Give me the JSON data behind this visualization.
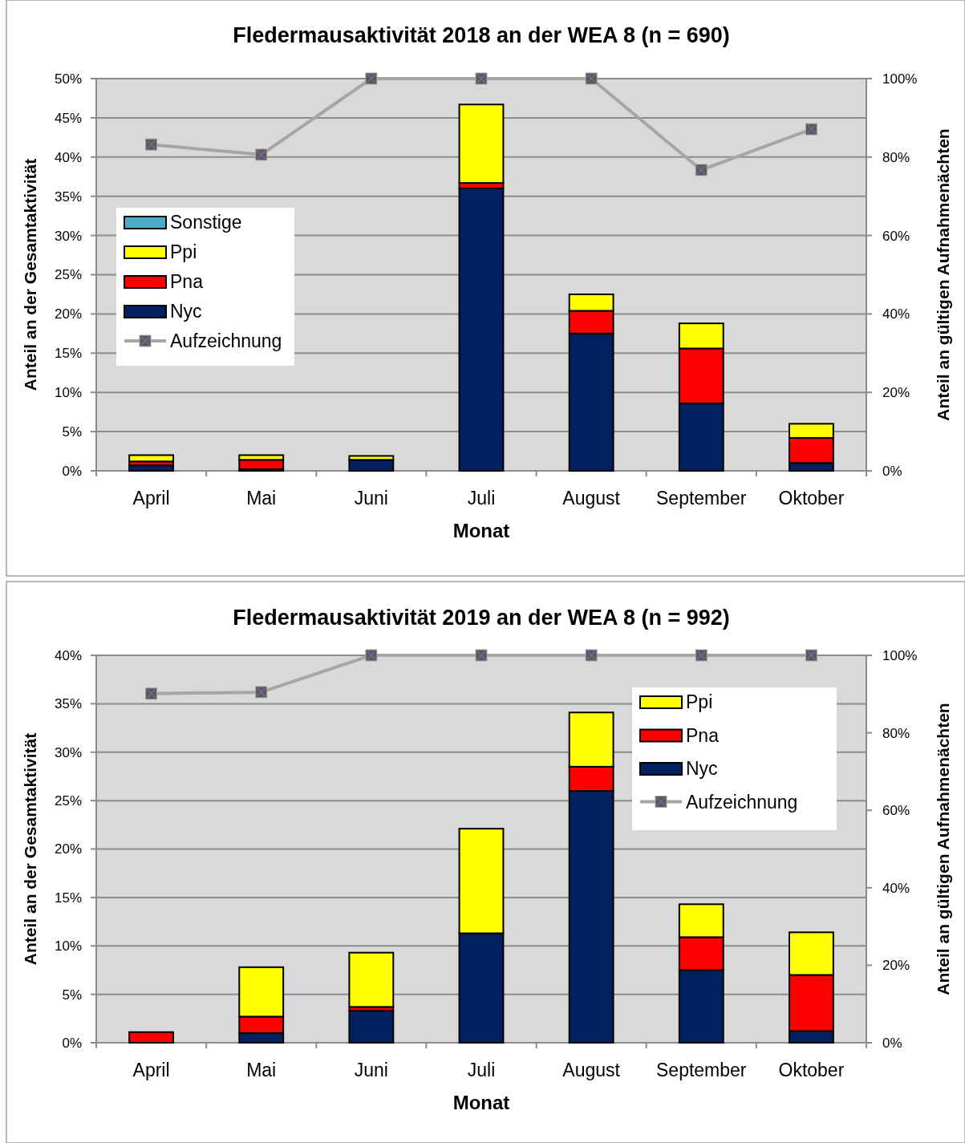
{
  "chart_data": [
    {
      "type": "bar",
      "title": "Fledermausaktivität 2018 an der WEA 8 (n = 690)",
      "xlabel": "Monat",
      "ylabel": "Anteil an der Gesamtaktivität",
      "y2label": "Anteil an gültigen Aufnahmenächten",
      "categories": [
        "April",
        "Mai",
        "Juni",
        "Juli",
        "August",
        "September",
        "Oktober"
      ],
      "stacked": true,
      "series": [
        {
          "name": "Nyc",
          "color": "#002060",
          "values": [
            0.7,
            0.2,
            1.4,
            36.0,
            17.5,
            8.6,
            1.0
          ]
        },
        {
          "name": "Pna",
          "color": "#ff0000",
          "values": [
            0.5,
            1.2,
            null,
            0.7,
            2.9,
            7.0,
            3.2
          ]
        },
        {
          "name": "Ppi",
          "color": "#ffff00",
          "values": [
            0.8,
            0.6,
            0.5,
            10.0,
            2.1,
            3.2,
            1.8
          ]
        },
        {
          "name": "Sonstige",
          "color": "#4bacc6",
          "values": [
            null,
            null,
            null,
            null,
            null,
            null,
            null
          ]
        },
        {
          "name": "Aufzeichnung",
          "type": "line",
          "axis": "y2",
          "color": "#a6a6a6",
          "marker": "square",
          "values": [
            83.2,
            80.6,
            100,
            100,
            100,
            76.7,
            87.1
          ]
        }
      ],
      "ylim": [
        0,
        50
      ],
      "yticks": [
        {
          "value": 0,
          "label": "0%"
        },
        {
          "value": 5,
          "label": "5%"
        },
        {
          "value": 10,
          "label": "10%"
        },
        {
          "value": 15,
          "label": "15%"
        },
        {
          "value": 20,
          "label": "20%"
        },
        {
          "value": 25,
          "label": "25%"
        },
        {
          "value": 30,
          "label": "30%"
        },
        {
          "value": 35,
          "label": "35%"
        },
        {
          "value": 40,
          "label": "40%"
        },
        {
          "value": 45,
          "label": "45%"
        },
        {
          "value": 50,
          "label": "50%"
        }
      ],
      "y2lim": [
        0,
        100
      ],
      "y2ticks": [
        {
          "value": 0,
          "label": "0%"
        },
        {
          "value": 20,
          "label": "20%"
        },
        {
          "value": 40,
          "label": "40%"
        },
        {
          "value": 60,
          "label": "60%"
        },
        {
          "value": 80,
          "label": "80%"
        },
        {
          "value": 100,
          "label": "100%"
        }
      ],
      "grid": "y",
      "legend": "left"
    },
    {
      "type": "bar",
      "title": "Fledermausaktivität 2019 an der WEA 8 (n = 992)",
      "xlabel": "Monat",
      "ylabel": "Anteil an der Gesamtaktivität",
      "y2label": "Anteil an gültigen Aufnahmenächten",
      "categories": [
        "April",
        "Mai",
        "Juni",
        "Juli",
        "August",
        "September",
        "Oktober"
      ],
      "stacked": true,
      "series": [
        {
          "name": "Nyc",
          "color": "#002060",
          "values": [
            null,
            1.0,
            3.3,
            11.3,
            26.0,
            7.5,
            1.2
          ]
        },
        {
          "name": "Pna",
          "color": "#ff0000",
          "values": [
            1.1,
            1.7,
            0.4,
            null,
            2.5,
            3.4,
            5.8
          ]
        },
        {
          "name": "Ppi",
          "color": "#ffff00",
          "values": [
            null,
            5.1,
            5.6,
            10.8,
            5.6,
            3.4,
            4.4
          ]
        },
        {
          "name": "Aufzeichnung",
          "type": "line",
          "axis": "y2",
          "color": "#a6a6a6",
          "marker": "square",
          "values": [
            90.1,
            90.5,
            100,
            100,
            100,
            100,
            100
          ]
        }
      ],
      "ylim": [
        0,
        40
      ],
      "yticks": [
        {
          "value": 0,
          "label": "0%"
        },
        {
          "value": 5,
          "label": "5%"
        },
        {
          "value": 10,
          "label": "10%"
        },
        {
          "value": 15,
          "label": "15%"
        },
        {
          "value": 20,
          "label": "20%"
        },
        {
          "value": 25,
          "label": "25%"
        },
        {
          "value": 30,
          "label": "30%"
        },
        {
          "value": 35,
          "label": "35%"
        },
        {
          "value": 40,
          "label": "40%"
        }
      ],
      "y2lim": [
        0,
        100
      ],
      "y2ticks": [
        {
          "value": 0,
          "label": "0%"
        },
        {
          "value": 20,
          "label": "20%"
        },
        {
          "value": 40,
          "label": "40%"
        },
        {
          "value": 60,
          "label": "60%"
        },
        {
          "value": 80,
          "label": "80%"
        },
        {
          "value": 100,
          "label": "100%"
        }
      ],
      "grid": "y",
      "legend": "top right"
    }
  ]
}
